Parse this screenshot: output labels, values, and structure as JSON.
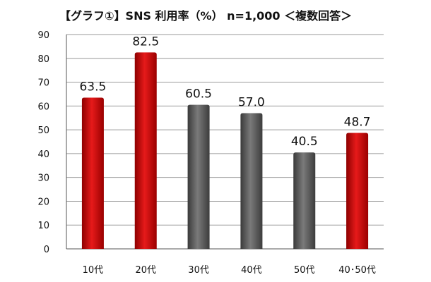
{
  "chart_data": {
    "type": "bar",
    "title": "【グラフ①】SNS 利用率（%） n=1,000 ＜複数回答＞",
    "categories": [
      "10代",
      "20代",
      "30代",
      "40代",
      "50代",
      "40･50代"
    ],
    "values": [
      63.5,
      82.5,
      60.5,
      57.0,
      40.5,
      48.7
    ],
    "value_labels": [
      "63.5",
      "82.5",
      "60.5",
      "57.0",
      "40.5",
      "48.7"
    ],
    "bar_colors": [
      "#cc0a0a",
      "#cc0a0a",
      "#5c5c5c",
      "#5c5c5c",
      "#5c5c5c",
      "#cc0a0a"
    ],
    "ylim": [
      0,
      90
    ],
    "yticks": [
      0,
      10,
      20,
      30,
      40,
      50,
      60,
      70,
      80,
      90
    ],
    "xlabel": "",
    "ylabel": "",
    "grid": true,
    "legend": "none"
  }
}
